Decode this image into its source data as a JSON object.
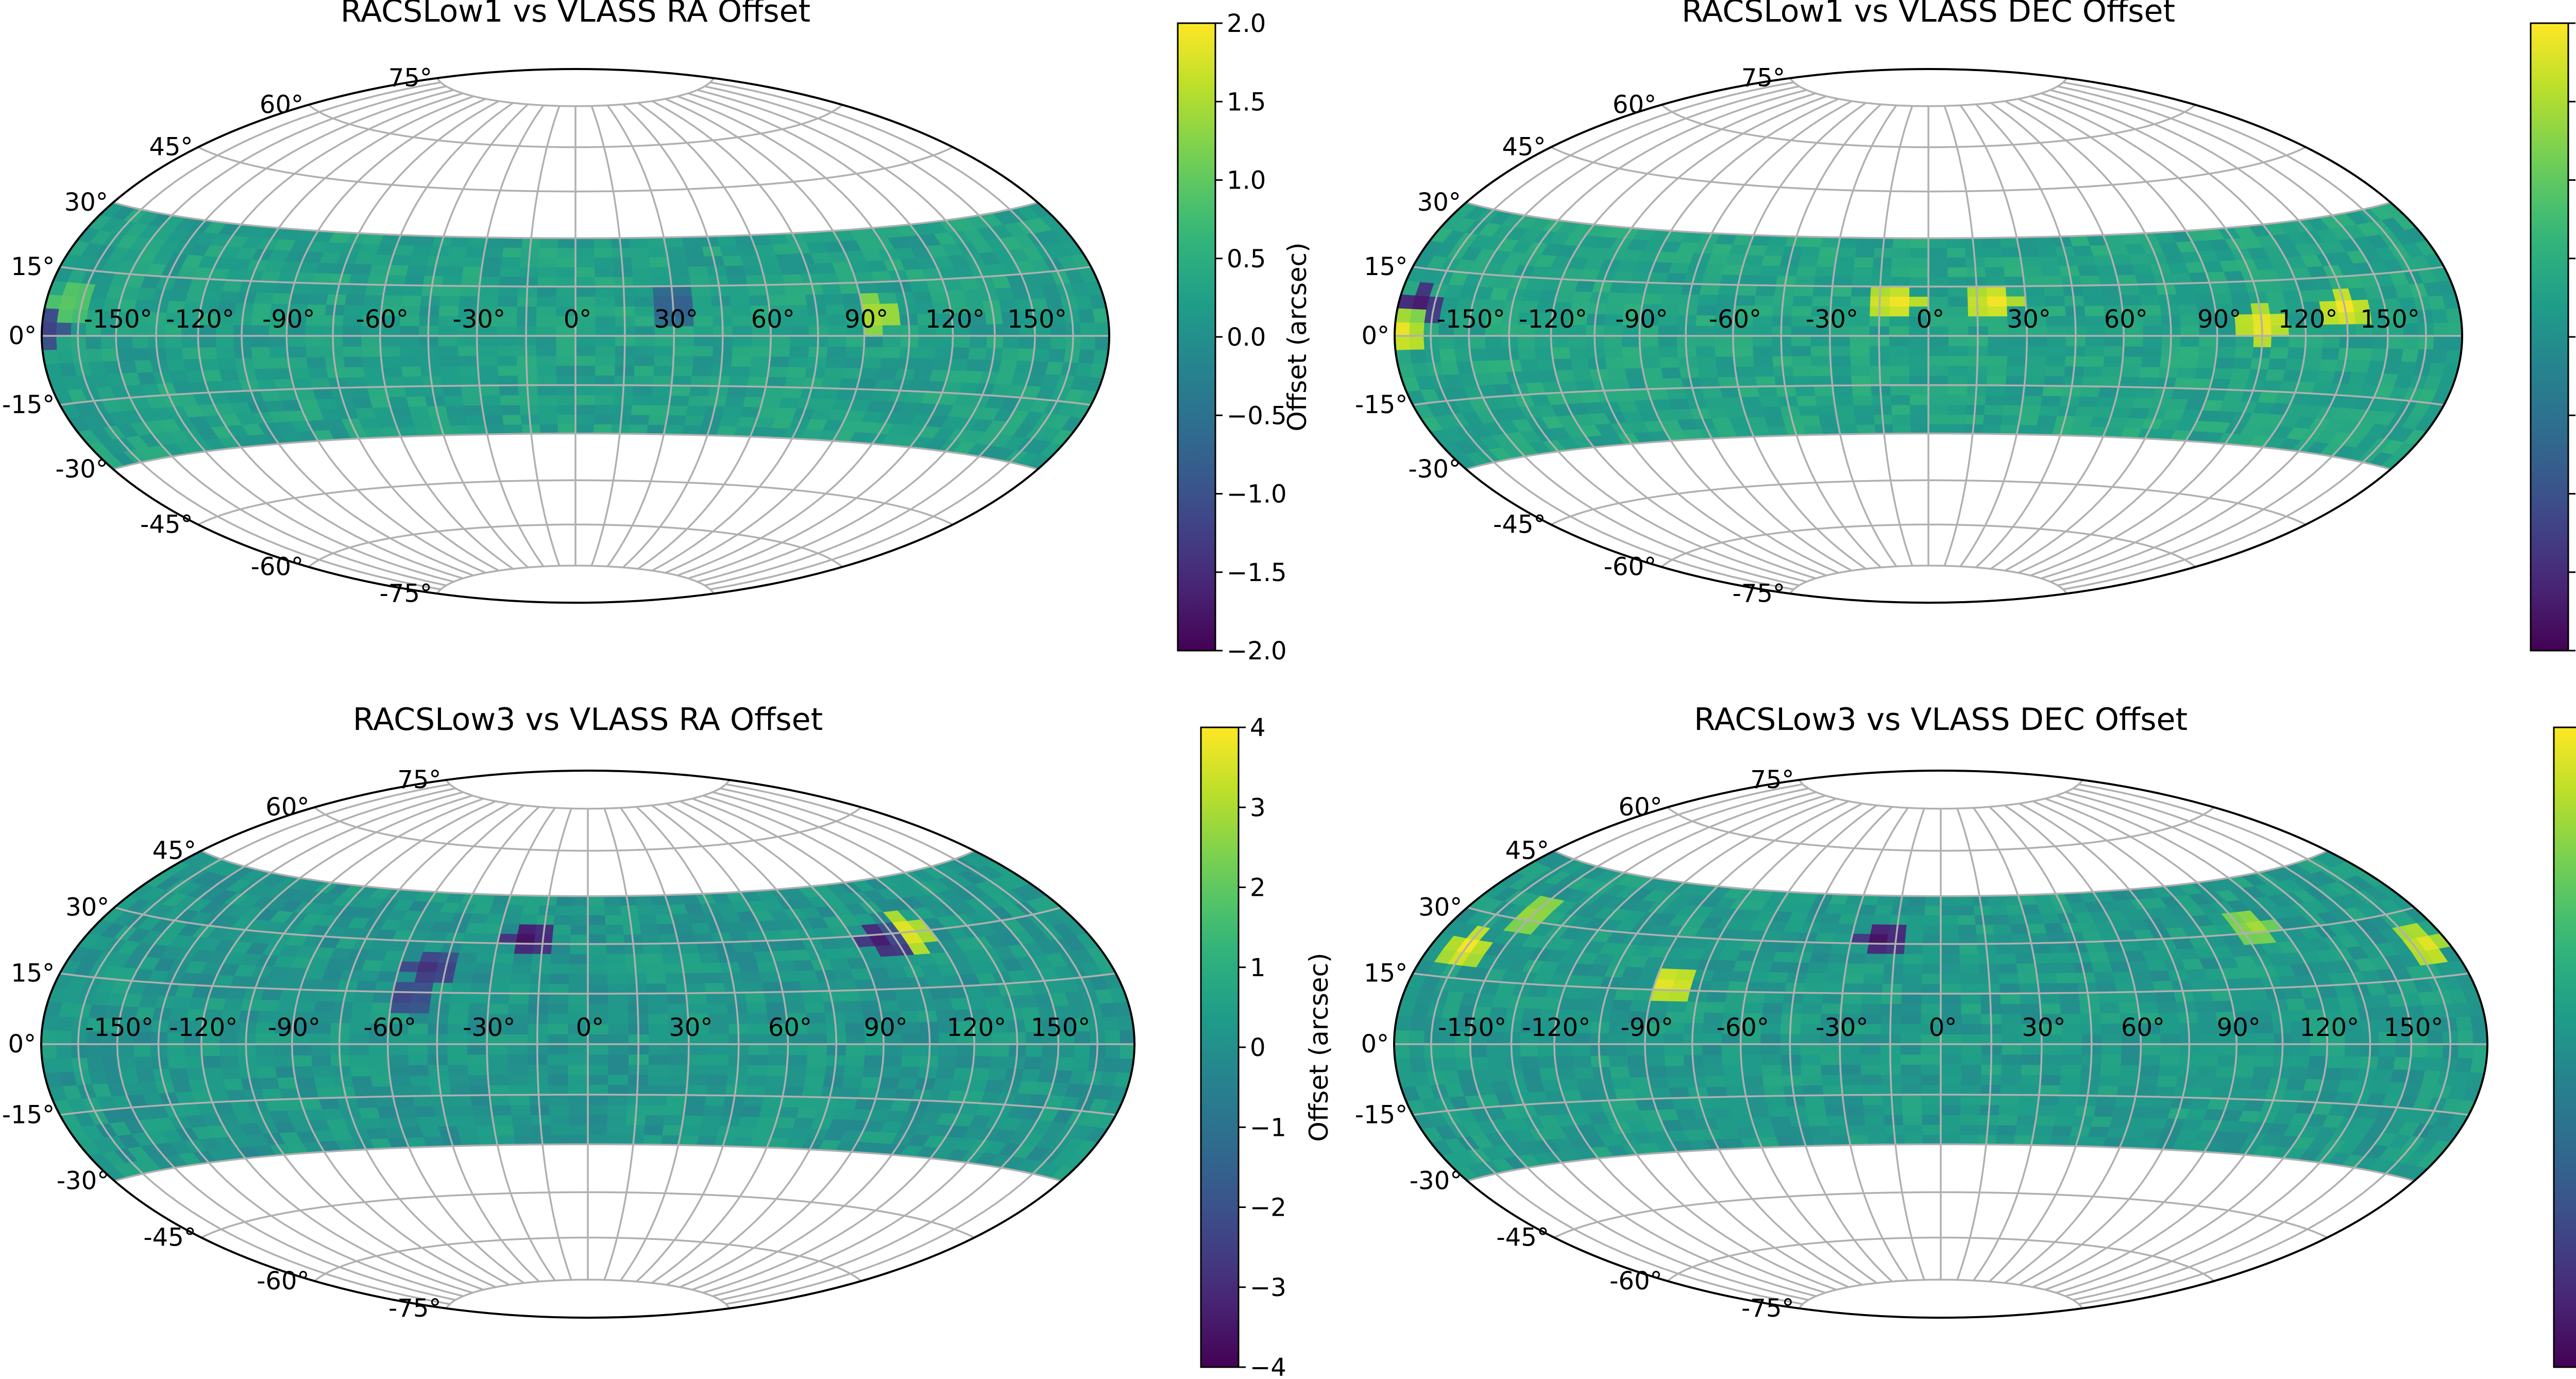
{
  "chart_data": [
    {
      "type": "heatmap",
      "projection": "hammer",
      "title": "RACSLow1 vs VLASS RA Offset",
      "colorbar": {
        "label": "Offset (arcsec)",
        "colormap": "viridis",
        "range": [
          -2,
          2
        ],
        "ticks": [
          "2.0",
          "1.5",
          "1.0",
          "0.5",
          "0.0",
          "−0.5",
          "−1.0",
          "−1.5",
          "−2.0"
        ]
      },
      "lon_tick_labels": [
        "-150°",
        "-120°",
        "-90°",
        "-60°",
        "-30°",
        "0°",
        "30°",
        "60°",
        "90°",
        "120°",
        "150°"
      ],
      "lat_tick_labels": [
        "75°",
        "60°",
        "45°",
        "30°",
        "15°",
        "0°",
        "-15°",
        "-30°",
        "-45°",
        "-60°",
        "-75°"
      ],
      "coverage_dec": [
        -30,
        30
      ],
      "background_value": 0.25,
      "features": [
        {
          "ra": -95,
          "dec": 6,
          "value": 1.6
        },
        {
          "ra": -30,
          "dec": 9,
          "value": -0.9
        },
        {
          "ra": 178,
          "dec": 2,
          "value": -1.3
        },
        {
          "ra": 170,
          "dec": 8,
          "value": 1.0
        }
      ],
      "grid": true
    },
    {
      "type": "heatmap",
      "projection": "hammer",
      "title": "RACSLow1 vs VLASS DEC Offset",
      "colorbar": {
        "label": "Offset (arcsec)",
        "colormap": "viridis",
        "range": [
          -2,
          2
        ],
        "ticks": [
          "2.0",
          "1.5",
          "1.0",
          "0.5",
          "0.0",
          "−0.5",
          "−1.0",
          "−1.5",
          "−2.0"
        ]
      },
      "lon_tick_labels": [
        "-150°",
        "-120°",
        "-90°",
        "-60°",
        "-30°",
        "0°",
        "30°",
        "60°",
        "90°",
        "120°",
        "150°"
      ],
      "lat_tick_labels": [
        "75°",
        "60°",
        "45°",
        "30°",
        "15°",
        "0°",
        "-15°",
        "-30°",
        "-45°",
        "-60°",
        "-75°"
      ],
      "coverage_dec": [
        -30,
        30
      ],
      "background_value": 0.3,
      "features": [
        {
          "ra": -135,
          "dec": 7,
          "value": 2.0
        },
        {
          "ra": -105,
          "dec": 3,
          "value": 2.0
        },
        {
          "ra": -20,
          "dec": 10,
          "value": 2.0
        },
        {
          "ra": 10,
          "dec": 10,
          "value": 2.0
        },
        {
          "ra": 172,
          "dec": 6,
          "value": -1.9
        },
        {
          "ra": 175,
          "dec": 2,
          "value": 2.0
        }
      ],
      "grid": true
    },
    {
      "type": "heatmap",
      "projection": "hammer",
      "title": "RACSLow3 vs VLASS RA Offset",
      "colorbar": {
        "label": "Offset (arcsec)",
        "colormap": "viridis",
        "range": [
          -4,
          4
        ],
        "ticks": [
          "4",
          "3",
          "2",
          "1",
          "0",
          "−1",
          "−2",
          "−3",
          "−4"
        ]
      },
      "lon_tick_labels": [
        "-150°",
        "-120°",
        "-90°",
        "-60°",
        "-30°",
        "0°",
        "30°",
        "60°",
        "90°",
        "120°",
        "150°"
      ],
      "lat_tick_labels": [
        "75°",
        "60°",
        "45°",
        "30°",
        "15°",
        "0°",
        "-15°",
        "-30°",
        "-45°",
        "-60°",
        "-75°"
      ],
      "coverage_dec": [
        -30,
        45
      ],
      "background_value": 0.2,
      "features": [
        {
          "ra": -110,
          "dec": 30,
          "value": 4.0
        },
        {
          "ra": -100,
          "dec": 29,
          "value": -3.5
        },
        {
          "ra": 20,
          "dec": 32,
          "value": -3.8
        },
        {
          "ra": 50,
          "dec": 22,
          "value": -3.0
        },
        {
          "ra": 55,
          "dec": 14,
          "value": -2.5
        }
      ],
      "grid": true
    },
    {
      "type": "heatmap",
      "projection": "hammer",
      "title": "RACSLow3 vs VLASS DEC Offset",
      "colorbar": {
        "label": "Offset (arcsec)",
        "colormap": "viridis",
        "range": [
          -4,
          4
        ],
        "ticks": [
          "4",
          "3",
          "2",
          "1",
          "0",
          "−1",
          "−2",
          "−3",
          "−4"
        ]
      },
      "lon_tick_labels": [
        "-150°",
        "-120°",
        "-90°",
        "-60°",
        "-30°",
        "0°",
        "30°",
        "60°",
        "90°",
        "120°",
        "150°"
      ],
      "lat_tick_labels": [
        "75°",
        "60°",
        "45°",
        "30°",
        "15°",
        "0°",
        "-15°",
        "-30°",
        "-45°",
        "-60°",
        "-75°"
      ],
      "coverage_dec": [
        -30,
        45
      ],
      "background_value": 0.3,
      "features": [
        {
          "ra": -170,
          "dec": 22,
          "value": 3.8
        },
        {
          "ra": -110,
          "dec": 32,
          "value": 3.0
        },
        {
          "ra": 20,
          "dec": 32,
          "value": -3.8
        },
        {
          "ra": 85,
          "dec": 17,
          "value": 4.0
        },
        {
          "ra": 165,
          "dec": 22,
          "value": 4.0
        },
        {
          "ra": 150,
          "dec": 32,
          "value": 3.0
        }
      ],
      "grid": true
    }
  ]
}
